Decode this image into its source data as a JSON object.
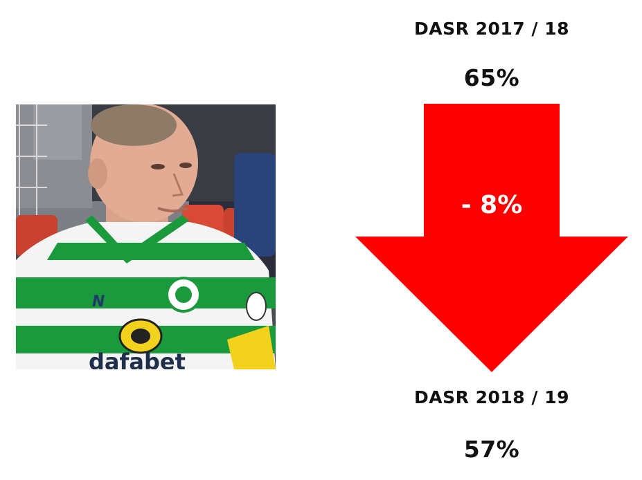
{
  "header": {
    "season_before": "DASR 2017 / 18",
    "value_before": "65%"
  },
  "arrow": {
    "change_label": "- 8%",
    "color": "#ff0000"
  },
  "footer": {
    "season_after": "DASR 2018 / 19",
    "value_after": "57%"
  },
  "photo": {
    "shirt_print": "dafabet"
  },
  "colors": {
    "kit_green": "#1a9a3c",
    "kit_white": "#f4f4f4",
    "armband_yellow": "#f2d21c",
    "seat_red": "#d84a36"
  }
}
